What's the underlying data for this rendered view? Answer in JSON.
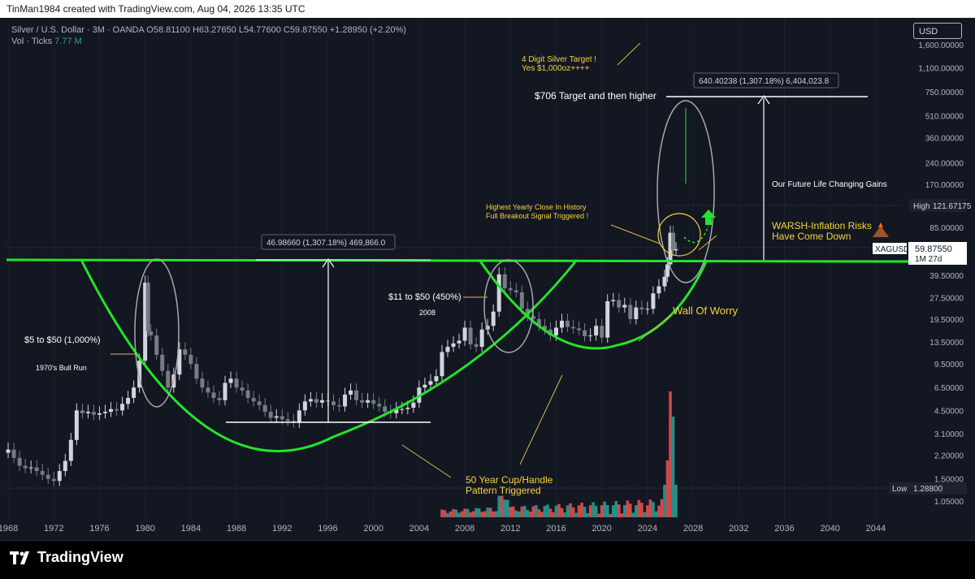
{
  "header": {
    "credit": "TinMan1984 created with TradingView.com, Aug 04, 2026 13:35 UTC"
  },
  "legend": {
    "symbol_line": "Silver / U.S. Dollar · 3M · OANDA",
    "ohlc": "O58.81100 H63.27650 L54.77600 C59.87550 +1.28950 (+2.20%)",
    "vol_label": "Vol · Ticks",
    "vol_value": "7.77 M"
  },
  "currency_button": "USD",
  "price_axis": {
    "ticks": [
      "1,600.00000",
      "1,100.00000",
      "750.00000",
      "510.00000",
      "360.00000",
      "240.00000",
      "170.00000",
      "121.67175",
      "85.00000",
      "59.87550",
      "39.50000",
      "27.50000",
      "19.50000",
      "13.50000",
      "9.50000",
      "6.50000",
      "4.50000",
      "3.10000",
      "2.20000",
      "1.50000",
      "1.28800",
      "1.05000"
    ],
    "high_label": "High",
    "high_value": "121.67175",
    "symbol_tag": "XAGUSD",
    "last_price": "59.87550",
    "countdown": "1M 27d",
    "low_label": "Low",
    "low_value": "1.28800"
  },
  "time_axis": {
    "labels": [
      "1968",
      "1972",
      "1976",
      "1980",
      "1984",
      "1988",
      "1992",
      "1996",
      "2000",
      "2004",
      "2008",
      "2012",
      "2016",
      "2020",
      "2024",
      "2028",
      "2032",
      "2036",
      "2040",
      "2044"
    ]
  },
  "annotations": {
    "target_4digit": "4 Digit Silver Target !",
    "target_4digit_2": "Yes $1,000oz++++",
    "measure_top": "640.40238 (1,307.18%) 6,404,023.8",
    "target_706": "$706 Target and then higher",
    "future_gains": "Our Future Life Changing Gains",
    "highest_close": "Highest Yearly Close In History",
    "full_breakout": "Full Breakout Signal Triggered !",
    "warsh_1": "WARSH-Inflation Risks",
    "warsh_2": "Have Come Down",
    "measure_left": "46.98660 (1,307.18%) 469,866.0",
    "eleven_to_fifty": "$11 to $50 (450%)",
    "year_2008": "2008",
    "wall_of_worry": "Wall Of Worry",
    "five_to_fifty": "$5 to $50 (1,000%)",
    "bull_run": "1970's Bull Run",
    "cup_handle_1": "50 Year Cup/Handle",
    "cup_handle_2": "Pattern Triggered"
  },
  "footer": {
    "brand": "TradingView"
  },
  "colors": {
    "background": "#131722",
    "green_line": "#22e52a",
    "annotation_yellow": "#f5d33c",
    "up": "#d1d4dc",
    "down": "#787b86",
    "vol_up": "#26a69a",
    "vol_down": "#ef5350"
  },
  "chart_data": {
    "type": "candlestick",
    "symbol": "XAGUSD",
    "interval": "3M",
    "scale": "log",
    "x_range": [
      1967,
      2046
    ],
    "y_range": [
      0.9,
      2000
    ],
    "current_price": 59.8755,
    "all_time_high": 121.67175,
    "all_time_low": 1.288,
    "series": [
      {
        "x": 1968.0,
        "close": 2.4
      },
      {
        "x": 1968.5,
        "close": 2.1
      },
      {
        "x": 1969.0,
        "close": 1.85
      },
      {
        "x": 1969.5,
        "close": 1.78
      },
      {
        "x": 1970.0,
        "close": 1.8
      },
      {
        "x": 1970.5,
        "close": 1.7
      },
      {
        "x": 1971.0,
        "close": 1.6
      },
      {
        "x": 1971.5,
        "close": 1.5
      },
      {
        "x": 1972.0,
        "close": 1.45
      },
      {
        "x": 1972.5,
        "close": 1.7
      },
      {
        "x": 1973.0,
        "close": 2.0
      },
      {
        "x": 1973.5,
        "close": 2.8
      },
      {
        "x": 1974.0,
        "close": 4.5
      },
      {
        "x": 1974.5,
        "close": 4.3
      },
      {
        "x": 1975.0,
        "close": 4.4
      },
      {
        "x": 1975.5,
        "close": 4.2
      },
      {
        "x": 1976.0,
        "close": 4.3
      },
      {
        "x": 1976.5,
        "close": 4.4
      },
      {
        "x": 1977.0,
        "close": 4.6
      },
      {
        "x": 1977.5,
        "close": 4.5
      },
      {
        "x": 1978.0,
        "close": 5.0
      },
      {
        "x": 1978.5,
        "close": 5.5
      },
      {
        "x": 1979.0,
        "close": 6.5
      },
      {
        "x": 1979.5,
        "close": 10.0
      },
      {
        "x": 1980.0,
        "close": 35.0
      },
      {
        "x": 1980.25,
        "close": 16.0
      },
      {
        "x": 1980.5,
        "close": 15.0
      },
      {
        "x": 1981.0,
        "close": 11.0
      },
      {
        "x": 1981.5,
        "close": 8.5
      },
      {
        "x": 1982.0,
        "close": 6.5
      },
      {
        "x": 1982.5,
        "close": 8.0
      },
      {
        "x": 1983.0,
        "close": 12.0
      },
      {
        "x": 1983.5,
        "close": 11.0
      },
      {
        "x": 1984.0,
        "close": 9.5
      },
      {
        "x": 1984.5,
        "close": 7.5
      },
      {
        "x": 1985.0,
        "close": 6.5
      },
      {
        "x": 1985.5,
        "close": 6.0
      },
      {
        "x": 1986.0,
        "close": 5.5
      },
      {
        "x": 1986.5,
        "close": 5.3
      },
      {
        "x": 1987.0,
        "close": 7.0
      },
      {
        "x": 1987.5,
        "close": 7.5
      },
      {
        "x": 1988.0,
        "close": 6.5
      },
      {
        "x": 1988.5,
        "close": 6.2
      },
      {
        "x": 1989.0,
        "close": 5.5
      },
      {
        "x": 1989.5,
        "close": 5.2
      },
      {
        "x": 1990.0,
        "close": 4.9
      },
      {
        "x": 1990.5,
        "close": 4.4
      },
      {
        "x": 1991.0,
        "close": 4.0
      },
      {
        "x": 1991.5,
        "close": 4.1
      },
      {
        "x": 1992.0,
        "close": 3.9
      },
      {
        "x": 1992.5,
        "close": 3.8
      },
      {
        "x": 1993.0,
        "close": 3.7
      },
      {
        "x": 1993.5,
        "close": 4.5
      },
      {
        "x": 1994.0,
        "close": 5.2
      },
      {
        "x": 1994.5,
        "close": 5.4
      },
      {
        "x": 1995.0,
        "close": 5.1
      },
      {
        "x": 1995.5,
        "close": 5.3
      },
      {
        "x": 1996.0,
        "close": 5.2
      },
      {
        "x": 1996.5,
        "close": 4.9
      },
      {
        "x": 1997.0,
        "close": 4.8
      },
      {
        "x": 1997.5,
        "close": 5.8
      },
      {
        "x": 1998.0,
        "close": 6.2
      },
      {
        "x": 1998.5,
        "close": 5.3
      },
      {
        "x": 1999.0,
        "close": 5.1
      },
      {
        "x": 1999.5,
        "close": 5.3
      },
      {
        "x": 2000.0,
        "close": 5.0
      },
      {
        "x": 2000.5,
        "close": 4.8
      },
      {
        "x": 2001.0,
        "close": 4.4
      },
      {
        "x": 2001.5,
        "close": 4.3
      },
      {
        "x": 2002.0,
        "close": 4.6
      },
      {
        "x": 2002.5,
        "close": 4.6
      },
      {
        "x": 2003.0,
        "close": 4.7
      },
      {
        "x": 2003.5,
        "close": 5.1
      },
      {
        "x": 2004.0,
        "close": 6.5
      },
      {
        "x": 2004.5,
        "close": 6.8
      },
      {
        "x": 2005.0,
        "close": 7.2
      },
      {
        "x": 2005.5,
        "close": 7.8
      },
      {
        "x": 2006.0,
        "close": 11.5
      },
      {
        "x": 2006.5,
        "close": 12.5
      },
      {
        "x": 2007.0,
        "close": 13.2
      },
      {
        "x": 2007.5,
        "close": 13.8
      },
      {
        "x": 2008.0,
        "close": 17.0
      },
      {
        "x": 2008.5,
        "close": 13.0
      },
      {
        "x": 2009.0,
        "close": 12.5
      },
      {
        "x": 2009.5,
        "close": 16.5
      },
      {
        "x": 2010.0,
        "close": 17.5
      },
      {
        "x": 2010.5,
        "close": 22.0
      },
      {
        "x": 2011.0,
        "close": 40.0
      },
      {
        "x": 2011.5,
        "close": 32.0
      },
      {
        "x": 2012.0,
        "close": 31.0
      },
      {
        "x": 2012.5,
        "close": 30.0
      },
      {
        "x": 2013.0,
        "close": 23.0
      },
      {
        "x": 2013.5,
        "close": 20.5
      },
      {
        "x": 2014.0,
        "close": 19.5
      },
      {
        "x": 2014.5,
        "close": 17.5
      },
      {
        "x": 2015.0,
        "close": 16.5
      },
      {
        "x": 2015.5,
        "close": 15.0
      },
      {
        "x": 2016.0,
        "close": 17.0
      },
      {
        "x": 2016.5,
        "close": 19.0
      },
      {
        "x": 2017.0,
        "close": 17.2
      },
      {
        "x": 2017.5,
        "close": 16.8
      },
      {
        "x": 2018.0,
        "close": 16.3
      },
      {
        "x": 2018.5,
        "close": 14.8
      },
      {
        "x": 2019.0,
        "close": 15.0
      },
      {
        "x": 2019.5,
        "close": 17.5
      },
      {
        "x": 2020.0,
        "close": 14.5
      },
      {
        "x": 2020.5,
        "close": 26.0
      },
      {
        "x": 2021.0,
        "close": 26.5
      },
      {
        "x": 2021.5,
        "close": 23.5
      },
      {
        "x": 2022.0,
        "close": 24.5
      },
      {
        "x": 2022.5,
        "close": 19.5
      },
      {
        "x": 2023.0,
        "close": 23.5
      },
      {
        "x": 2023.5,
        "close": 22.8
      },
      {
        "x": 2024.0,
        "close": 23.0
      },
      {
        "x": 2024.5,
        "close": 29.5
      },
      {
        "x": 2025.0,
        "close": 33.0
      },
      {
        "x": 2025.5,
        "close": 38.5
      },
      {
        "x": 2025.75,
        "close": 47.0
      },
      {
        "x": 2026.0,
        "close": 78.0
      },
      {
        "x": 2026.25,
        "close": 58.81
      },
      {
        "x": 2026.5,
        "close": 59.88
      }
    ],
    "volume_x_range": [
      2006,
      2026.5
    ],
    "volume_peak_year": 2026
  }
}
